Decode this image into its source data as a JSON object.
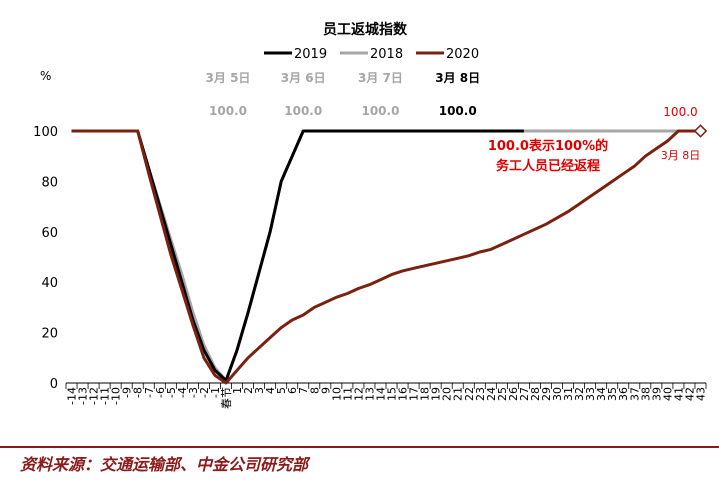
{
  "chart_data": {
    "type": "line",
    "title": "员工返城指数",
    "ylabel": "%",
    "ylim": [
      0,
      100
    ],
    "yticks": [
      0,
      20,
      40,
      60,
      80,
      100
    ],
    "x": [
      -14,
      -13,
      -12,
      -11,
      -10,
      -9,
      -8,
      -7,
      -6,
      -5,
      -4,
      -3,
      -2,
      -1,
      0,
      1,
      2,
      3,
      4,
      5,
      6,
      7,
      8,
      9,
      10,
      11,
      12,
      13,
      14,
      15,
      16,
      17,
      18,
      19,
      20,
      21,
      22,
      23,
      24,
      25,
      26,
      27,
      28,
      29,
      30,
      31,
      32,
      33,
      34,
      35,
      36,
      37,
      38,
      39,
      40,
      41,
      42,
      43
    ],
    "xtick_labels": [
      "-14",
      "-13",
      "-12",
      "-11",
      "-10",
      "-9",
      "-8",
      "-7",
      "-6",
      "-5",
      "-4",
      "-3",
      "-2",
      "-1",
      "春节",
      "1",
      "2",
      "3",
      "4",
      "5",
      "6",
      "7",
      "8",
      "9",
      "10",
      "11",
      "12",
      "13",
      "14",
      "15",
      "16",
      "17",
      "18",
      "19",
      "20",
      "21",
      "22",
      "23",
      "24",
      "25",
      "26",
      "27",
      "28",
      "29",
      "30",
      "31",
      "32",
      "33",
      "34",
      "35",
      "36",
      "37",
      "38",
      "39",
      "40",
      "41",
      "42",
      "43"
    ],
    "legend": [
      "2019",
      "2018",
      "2020"
    ],
    "legend_position": "top",
    "grid": false,
    "series": [
      {
        "name": "2019",
        "color": "#000000",
        "points": [
          [
            -14,
            100
          ],
          [
            -8,
            100
          ],
          [
            -7,
            85
          ],
          [
            -6,
            70
          ],
          [
            -5,
            55
          ],
          [
            -4,
            40
          ],
          [
            -3,
            25
          ],
          [
            -2,
            13
          ],
          [
            -1,
            5
          ],
          [
            0,
            1
          ],
          [
            1,
            13
          ],
          [
            2,
            28
          ],
          [
            3,
            44
          ],
          [
            4,
            60
          ],
          [
            5,
            80
          ],
          [
            6,
            90
          ],
          [
            7,
            100
          ],
          [
            27,
            100
          ]
        ]
      },
      {
        "name": "2018",
        "color": "#a6a6a6",
        "points": [
          [
            -14,
            100
          ],
          [
            -8,
            100
          ],
          [
            -7,
            85
          ],
          [
            -6,
            71
          ],
          [
            -5,
            57
          ],
          [
            -4,
            43
          ],
          [
            -3,
            28
          ],
          [
            -2,
            15
          ],
          [
            -1,
            6
          ],
          [
            0,
            1
          ],
          [
            1,
            13
          ],
          [
            2,
            28
          ],
          [
            3,
            44
          ],
          [
            4,
            60
          ],
          [
            5,
            80
          ],
          [
            6,
            90
          ],
          [
            7,
            100
          ],
          [
            43,
            100
          ]
        ]
      },
      {
        "name": "2020",
        "color": "#7a2210",
        "points": [
          [
            -14,
            100
          ],
          [
            -8,
            100
          ],
          [
            -7,
            83
          ],
          [
            -6,
            67
          ],
          [
            -5,
            51
          ],
          [
            -4,
            37
          ],
          [
            -3,
            23
          ],
          [
            -2,
            10
          ],
          [
            -1,
            3
          ],
          [
            0,
            0
          ],
          [
            1,
            5
          ],
          [
            2,
            10
          ],
          [
            3,
            14
          ],
          [
            4,
            18
          ],
          [
            5,
            22
          ],
          [
            6,
            25
          ],
          [
            7,
            27
          ],
          [
            8,
            30
          ],
          [
            9,
            32
          ],
          [
            10,
            34
          ],
          [
            11,
            35.5
          ],
          [
            12,
            37.5
          ],
          [
            13,
            39
          ],
          [
            14,
            41
          ],
          [
            15,
            43
          ],
          [
            16,
            44.5
          ],
          [
            17,
            45.5
          ],
          [
            18,
            46.5
          ],
          [
            19,
            47.5
          ],
          [
            20,
            48.5
          ],
          [
            21,
            49.5
          ],
          [
            22,
            50.5
          ],
          [
            23,
            52
          ],
          [
            24,
            53
          ],
          [
            25,
            55
          ],
          [
            26,
            57
          ],
          [
            27,
            59
          ],
          [
            28,
            61
          ],
          [
            29,
            63
          ],
          [
            30,
            65.5
          ],
          [
            31,
            68
          ],
          [
            32,
            71
          ],
          [
            33,
            74
          ],
          [
            34,
            77
          ],
          [
            35,
            80
          ],
          [
            36,
            83
          ],
          [
            37,
            86
          ],
          [
            38,
            90
          ],
          [
            39,
            93
          ],
          [
            40,
            96
          ],
          [
            41,
            100
          ],
          [
            43,
            100
          ]
        ]
      }
    ],
    "date_labels": [
      {
        "date": "3月 5日",
        "value": "100.0",
        "x": 0,
        "color": "#a6a6a6"
      },
      {
        "date": "3月 6日",
        "value": "100.0",
        "x": 7,
        "color": "#a6a6a6"
      },
      {
        "date": "3月 7日",
        "value": "100.0",
        "x": 14,
        "color": "#a6a6a6"
      },
      {
        "date": "3月 8日",
        "value": "100.0",
        "x": 21,
        "color": "#000000"
      }
    ],
    "end_label": {
      "value": "100.0",
      "date": "3月 8日",
      "x": 43,
      "y": 100,
      "color": "#e00000"
    },
    "note_lines": [
      "100.0表示100%的",
      "务工人员已经返程"
    ],
    "note_color": "#e00000"
  },
  "source": "资料来源：交通运输部、中金公司研究部"
}
